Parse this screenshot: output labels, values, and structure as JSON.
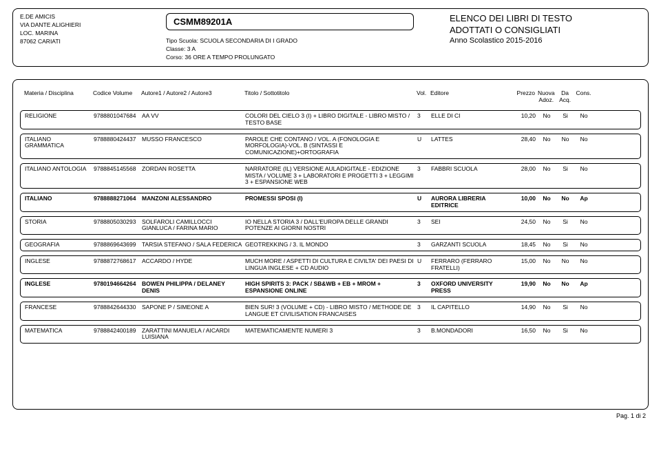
{
  "header": {
    "school_name": "E.DE AMICIS",
    "street": "VIA DANTE ALIGHIERI",
    "loc": "LOC. MARINA",
    "city": "87062  CARIATI",
    "code": "CSMM89201A",
    "tipo_label": "Tipo Scuola:",
    "tipo_value": "SCUOLA SECONDARIA DI I GRADO",
    "classe_label": "Classe:",
    "classe_value": "3 A",
    "corso_label": "Corso:",
    "corso_value": "36 ORE A TEMPO PROLUNGATO",
    "title1": "ELENCO DEI LIBRI DI TESTO",
    "title2": "ADOTTATI O CONSIGLIATI",
    "anno": "Anno Scolastico 2015-2016"
  },
  "columns": {
    "materia": "Materia / Disciplina",
    "codice": "Codice Volume",
    "autore": "Autore1 / Autore2 / Autore3",
    "titolo": "Titolo / Sottotitolo",
    "vol": "Vol.",
    "editore": "Editore",
    "prezzo": "Prezzo",
    "nuova": "Nuova Adoz.",
    "da": "Da Acq.",
    "cons": "Cons."
  },
  "rows": [
    {
      "materia": "RELIGIONE",
      "codice": "9788801047684",
      "autore": "AA VV",
      "titolo": "COLORI DEL CIELO 3 (I) + LIBRO DIGITALE - LIBRO MISTO / TESTO BASE",
      "vol": "3",
      "editore": "ELLE DI CI",
      "prezzo": "10,20",
      "na": "No",
      "da": "Si",
      "cons": "No",
      "bold": false
    },
    {
      "materia": "ITALIANO GRAMMATICA",
      "codice": "9788880424437",
      "autore": "MUSSO FRANCESCO",
      "titolo": "PAROLE CHE CONTANO / VOL. A (FONOLOGIA E MORFOLOGIA)-VOL. B (SINTASSI E COMUNICAZIONE)+ORTOGRAFIA",
      "vol": "U",
      "editore": "LATTES",
      "prezzo": "28,40",
      "na": "No",
      "da": "No",
      "cons": "No",
      "bold": false
    },
    {
      "materia": "ITALIANO ANTOLOGIA",
      "codice": "9788845145568",
      "autore": "ZORDAN ROSETTA",
      "titolo": "NARRATORE (IL) VERSIONE AULADIGITALE - EDIZIONE MISTA / VOLUME 3 + LABORATORI E PROGETTI 3 + LEGGIMI 3 + ESPANSIONE WEB",
      "vol": "3",
      "editore": "FABBRI SCUOLA",
      "prezzo": "28,00",
      "na": "No",
      "da": "Si",
      "cons": "No",
      "bold": false
    },
    {
      "materia": "ITALIANO",
      "codice": "9788888271064",
      "autore": "MANZONI ALESSANDRO",
      "titolo": "PROMESSI SPOSI (I)",
      "vol": "U",
      "editore": "AURORA LIBRERIA EDITRICE",
      "prezzo": "10,00",
      "na": "No",
      "da": "No",
      "cons": "Ap",
      "bold": true
    },
    {
      "materia": "STORIA",
      "codice": "9788805030293",
      "autore": "SOLFAROLI CAMILLOCCI GIANLUCA / FARINA MARIO",
      "titolo": "IO NELLA STORIA 3 / DALL'EUROPA DELLE GRANDI POTENZE AI GIORNI NOSTRI",
      "vol": "3",
      "editore": "SEI",
      "prezzo": "24,50",
      "na": "No",
      "da": "Si",
      "cons": "No",
      "bold": false
    },
    {
      "materia": "GEOGRAFIA",
      "codice": "9788869643699",
      "autore": "TARSIA STEFANO / SALA FEDERICA",
      "titolo": "GEOTREKKING / 3.  IL MONDO",
      "vol": "3",
      "editore": "GARZANTI SCUOLA",
      "prezzo": "18,45",
      "na": "No",
      "da": "Si",
      "cons": "No",
      "bold": false
    },
    {
      "materia": "INGLESE",
      "codice": "9788872768617",
      "autore": "ACCARDO / HYDE",
      "titolo": "MUCH MORE / ASPETTI DI CULTURA E CIVILTA' DEI PAESI DI LINGUA INGLESE + CD AUDIO",
      "vol": "U",
      "editore": "FERRARO (FERRARO FRATELLI)",
      "prezzo": "15,00",
      "na": "No",
      "da": "No",
      "cons": "No",
      "bold": false
    },
    {
      "materia": "INGLESE",
      "codice": "9780194664264",
      "autore": "BOWEN PHILIPPA / DELANEY DENIS",
      "titolo": "HIGH SPIRITS 3: PACK / SB&WB + EB + MROM + ESPANSIONE ONLINE",
      "vol": "3",
      "editore": "OXFORD UNIVERSITY PRESS",
      "prezzo": "19,90",
      "na": "No",
      "da": "No",
      "cons": "Ap",
      "bold": true
    },
    {
      "materia": "FRANCESE",
      "codice": "9788842644330",
      "autore": "SAPONE P / SIMEONE A",
      "titolo": "BIEN SUR! 3 (VOLUME + CD) - LIBRO MISTO / METHODE DE LANGUE ET CIVILISATION FRANCAISES",
      "vol": "3",
      "editore": "IL CAPITELLO",
      "prezzo": "14,90",
      "na": "No",
      "da": "Si",
      "cons": "No",
      "bold": false
    },
    {
      "materia": "MATEMATICA",
      "codice": "9788842400189",
      "autore": "ZARATTINI MANUELA / AICARDI LUISIANA",
      "titolo": "MATEMATICAMENTE NUMERI 3",
      "vol": "3",
      "editore": "B.MONDADORI",
      "prezzo": "16,50",
      "na": "No",
      "da": "Si",
      "cons": "No",
      "bold": false
    }
  ],
  "footer": "Pag. 1 di 2"
}
